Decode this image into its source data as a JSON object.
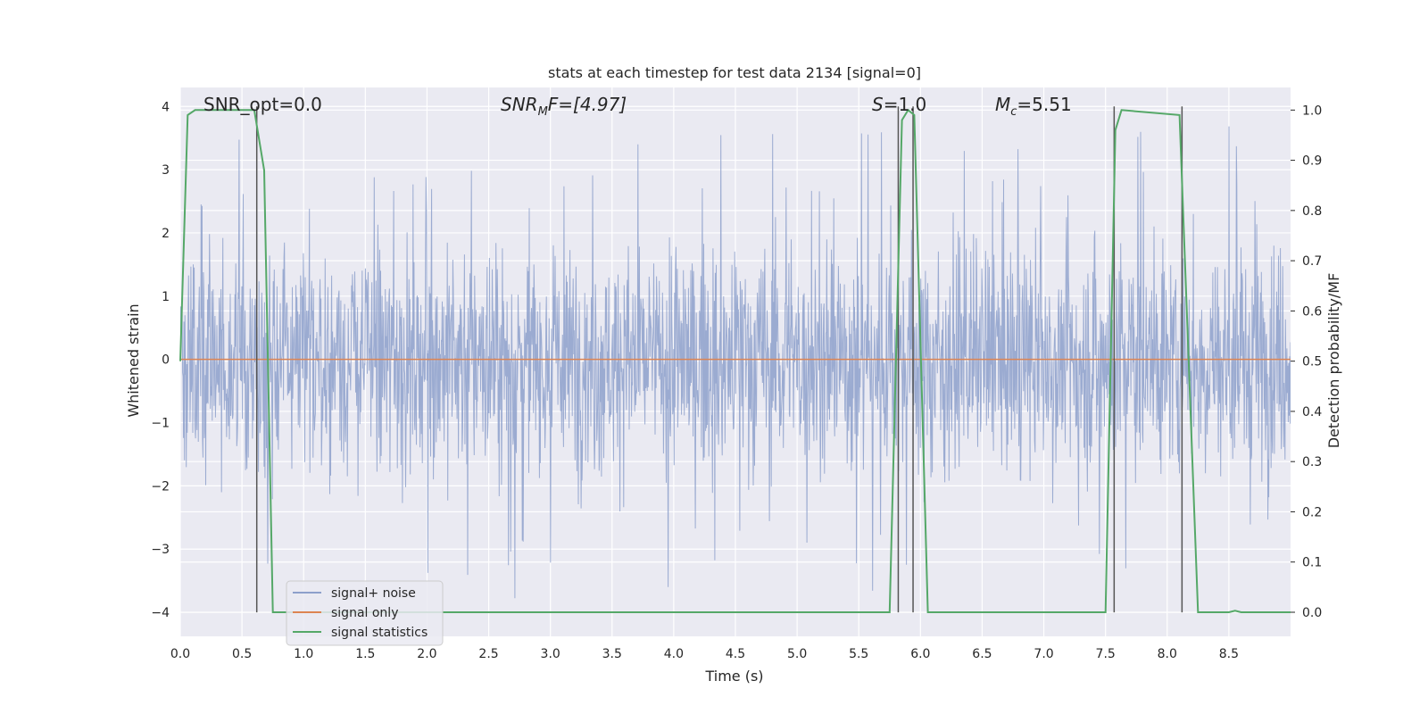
{
  "chart_data": {
    "type": "line",
    "title": "stats at each timestep for test data 2134 [signal=0]",
    "xlabel": "Time (s)",
    "ylabel": "Whitened strain",
    "y2label": "Detection probability/MF",
    "xlim": [
      0.0,
      9.0
    ],
    "ylim": [
      -4.38,
      4.3
    ],
    "y2lim": [
      -0.048,
      1.045
    ],
    "x_ticks": [
      "0.0",
      "0.5",
      "1.0",
      "1.5",
      "2.0",
      "2.5",
      "3.0",
      "3.5",
      "4.0",
      "4.5",
      "5.0",
      "5.5",
      "6.0",
      "6.5",
      "7.0",
      "7.5",
      "8.0",
      "8.5"
    ],
    "y_ticks": [
      "4",
      "3",
      "2",
      "1",
      "0",
      "−1",
      "−2",
      "−3",
      "−4"
    ],
    "y2_ticks": [
      "1.0",
      "0.9",
      "0.8",
      "0.7",
      "0.6",
      "0.5",
      "0.4",
      "0.3",
      "0.2",
      "0.1",
      "0.0"
    ],
    "annotations": {
      "snr_opt": "SNR_opt=0.0",
      "snr_mf_prefix": "SNR",
      "snr_mf_sub": "M",
      "snr_mf_suffix": "F=[4.97]",
      "s_var": "S",
      "s_value": "=1.0",
      "mc_var": "M",
      "mc_sub": "c",
      "mc_value": "=5.51"
    },
    "grid": true,
    "legend_position": "lower-left",
    "series": [
      {
        "name": "signal+ noise",
        "color": "#8da0cb",
        "axis": "left",
        "description_values": "noise band approx ±1.6 with spikes to about ±3.9"
      },
      {
        "name": "signal only",
        "color": "#dd8452",
        "axis": "left",
        "values_flat": 0.0
      },
      {
        "name": "signal statistics",
        "color": "#55a868",
        "axis": "right",
        "x": [
          0.0,
          0.06,
          0.12,
          0.6,
          0.68,
          0.75,
          5.75,
          5.85,
          5.9,
          5.95,
          6.06,
          7.5,
          7.58,
          7.63,
          8.1,
          8.25,
          8.5,
          8.55,
          8.6,
          9.0
        ],
        "y": [
          0.5,
          0.99,
          1.0,
          1.0,
          0.88,
          0.0,
          0.0,
          0.98,
          1.0,
          0.99,
          0.0,
          0.0,
          0.96,
          1.0,
          0.99,
          0.0,
          0.0,
          0.003,
          0.0,
          0.0
        ]
      }
    ],
    "vertical_markers_x": [
      0.62,
      5.82,
      5.94,
      7.57,
      8.12
    ]
  }
}
